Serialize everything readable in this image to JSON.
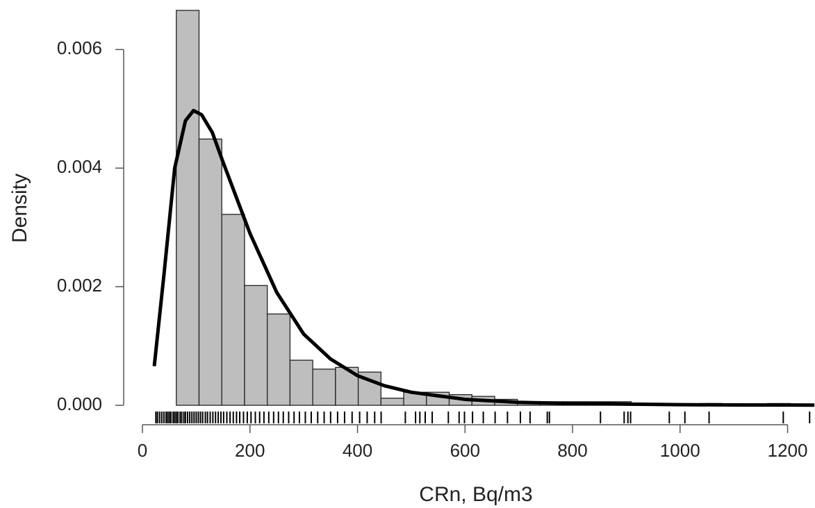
{
  "chart_data": {
    "type": "histogram",
    "xlabel": "CRn, Bq/m3",
    "ylabel": "Density",
    "bins": [
      63,
      105.3,
      147.6,
      189.9,
      232.2,
      274.5,
      316.8,
      359.1,
      401.4,
      443.7,
      486,
      528.3,
      570.6,
      612.9,
      655.2,
      697.5,
      739.8,
      782.1,
      824.4,
      866.7,
      909,
      951.3,
      993.6,
      1035.9,
      1078.2,
      1120.5,
      1162.8,
      1205.1,
      1247.4
    ],
    "values": [
      0.00666,
      0.00449,
      0.00322,
      0.00202,
      0.00154,
      0.00076,
      0.00061,
      0.00064,
      0.00056,
      0.00012,
      0.00022,
      0.00022,
      0.00018,
      0.00015,
      0.0001,
      6e-05,
      6e-05,
      6e-05,
      6e-05,
      6e-05,
      2e-05,
      2e-05,
      2e-05,
      3e-05,
      2e-05,
      2e-05,
      3e-05,
      1e-05
    ],
    "color": "#bebebe",
    "curve": {
      "x": [
        22,
        40,
        60,
        80,
        95,
        110,
        130,
        150,
        175,
        200,
        250,
        300,
        350,
        400,
        450,
        500,
        600,
        700,
        800,
        900,
        1000,
        1100,
        1250
      ],
      "y": [
        0.00066,
        0.0022,
        0.004,
        0.0048,
        0.00497,
        0.0049,
        0.0046,
        0.0041,
        0.0035,
        0.0029,
        0.0019,
        0.0012,
        0.00078,
        0.0005,
        0.00033,
        0.00022,
        0.0001,
        5e-05,
        3e-05,
        2e-05,
        1e-05,
        6e-06,
        3e-06
      ],
      "color": "#000000"
    },
    "rug": [
      25,
      28,
      32,
      36,
      40,
      44,
      47,
      50,
      53,
      57,
      60,
      63,
      66,
      70,
      73,
      77,
      80,
      84,
      88,
      92,
      96,
      100,
      104,
      108,
      112,
      117,
      121,
      126,
      131,
      136,
      141,
      146,
      151,
      157,
      163,
      169,
      175,
      181,
      188,
      195,
      202,
      210,
      218,
      226,
      235,
      244,
      253,
      262,
      272,
      282,
      292,
      303,
      314,
      326,
      338,
      350,
      363,
      376,
      390,
      404,
      418,
      432,
      444,
      489,
      508,
      516,
      526,
      539,
      569,
      589,
      599,
      614,
      634,
      656,
      679,
      703,
      721,
      753,
      757,
      852,
      896,
      903,
      908,
      980,
      1009,
      1054,
      1192,
      1241
    ],
    "xlim": [
      0,
      1251
    ],
    "ylim": [
      0,
      0.0068
    ],
    "xticks": [
      0,
      200,
      400,
      600,
      800,
      1000,
      1200
    ],
    "yticks": [
      {
        "value": 0,
        "label": "0.000"
      },
      {
        "value": 0.002,
        "label": "0.002"
      },
      {
        "value": 0.004,
        "label": "0.004"
      },
      {
        "value": 0.006,
        "label": "0.006"
      }
    ]
  }
}
